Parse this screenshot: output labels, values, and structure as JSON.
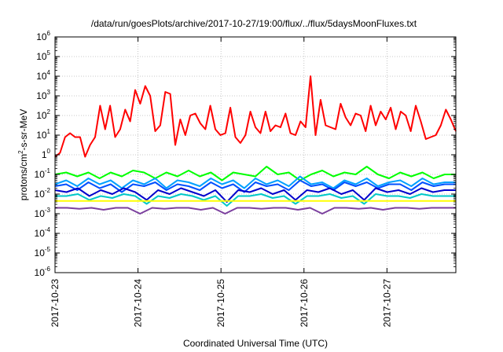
{
  "chart_data": {
    "type": "line",
    "title": "/data/run/goesPlots/archive/2017-10-27/19:00/flux/../flux/5daysMoonFluxes.txt",
    "xlabel": "Coordinated Universal Time (UTC)",
    "ylabel": {
      "pre": "protons/cm",
      "sup": "2",
      "post": "-s-sr-MeV"
    },
    "xlim": [
      0,
      4.83
    ],
    "x_ticks": [
      {
        "x": 0,
        "label": "2017-10-23"
      },
      {
        "x": 1,
        "label": "2017-10-24"
      },
      {
        "x": 2,
        "label": "2017-10-25"
      },
      {
        "x": 3,
        "label": "2017-10-26"
      },
      {
        "x": 4,
        "label": "2017-10-27"
      }
    ],
    "y_scale": "log",
    "ylim_exponent": [
      -6,
      6
    ],
    "y_ticks": [
      {
        "exp": -6,
        "base": "10",
        "sup": "-6"
      },
      {
        "exp": -5,
        "base": "10",
        "sup": "-5"
      },
      {
        "exp": -4,
        "base": "10",
        "sup": "-4"
      },
      {
        "exp": -3,
        "base": "10",
        "sup": "-3"
      },
      {
        "exp": -2,
        "base": "10",
        "sup": "-2"
      },
      {
        "exp": -1,
        "base": "10",
        "sup": "-1"
      },
      {
        "exp": 0,
        "base": "1",
        "sup": "0"
      },
      {
        "exp": 1,
        "base": "10",
        "sup": "1"
      },
      {
        "exp": 2,
        "base": "10",
        "sup": "2"
      },
      {
        "exp": 3,
        "base": "10",
        "sup": "3"
      },
      {
        "exp": 4,
        "base": "10",
        "sup": "4"
      },
      {
        "exp": 5,
        "base": "10",
        "sup": "5"
      },
      {
        "exp": 6,
        "base": "10",
        "sup": "6"
      }
    ],
    "grid": true,
    "series": [
      {
        "color": "#ff0000",
        "log10_y": [
          -0.1,
          0.1,
          0.9,
          1.1,
          0.9,
          0.9,
          -0.1,
          0.5,
          0.9,
          2.5,
          1.3,
          2.5,
          0.9,
          1.3,
          2.3,
          1.7,
          3.3,
          2.6,
          3.5,
          3.0,
          1.2,
          1.5,
          3.2,
          3.1,
          0.5,
          1.8,
          1.0,
          2.0,
          2.1,
          1.6,
          1.3,
          2.5,
          1.3,
          1.0,
          1.1,
          2.4,
          0.9,
          0.6,
          1.0,
          2.2,
          1.4,
          1.1,
          2.2,
          1.2,
          1.5,
          1.4,
          2.1,
          1.1,
          1.0,
          1.7,
          1.4,
          4.0,
          1.0,
          2.8,
          1.5,
          1.4,
          1.3,
          2.6,
          1.9,
          1.5,
          2.1,
          2.0,
          1.2,
          2.5,
          1.5,
          2.2,
          1.8,
          2.4,
          1.3,
          2.2,
          2.0,
          1.2,
          2.5,
          1.7,
          0.8,
          0.9,
          1.0,
          1.5,
          2.3,
          1.8,
          1.2
        ]
      },
      {
        "color": "#00ff00",
        "log10_y": [
          -1.0,
          -0.9,
          -1.1,
          -0.9,
          -1.2,
          -0.9,
          -1.1,
          -0.8,
          -0.9,
          -1.2,
          -0.9,
          -1.1,
          -0.8,
          -1.1,
          -0.9,
          -1.3,
          -0.9,
          -1.0,
          -1.1,
          -0.6,
          -1.0,
          -0.9,
          -1.3,
          -1.0,
          -0.8,
          -1.1,
          -0.9,
          -1.0,
          -0.6,
          -1.0,
          -1.2,
          -0.9,
          -1.1,
          -0.9,
          -1.2,
          -1.0,
          -1.0
        ]
      },
      {
        "color": "#00a0ff",
        "log10_y": [
          -1.5,
          -1.3,
          -1.6,
          -1.2,
          -1.5,
          -1.3,
          -1.7,
          -1.3,
          -1.5,
          -1.2,
          -1.7,
          -1.3,
          -1.4,
          -1.6,
          -1.2,
          -1.5,
          -1.3,
          -1.7,
          -1.2,
          -1.5,
          -1.3,
          -1.6,
          -1.1,
          -1.5,
          -1.4,
          -1.7,
          -1.3,
          -1.5,
          -1.2,
          -1.6,
          -1.4,
          -1.3,
          -1.6,
          -1.2,
          -1.5,
          -1.4,
          -1.4
        ]
      },
      {
        "color": "#0050ff",
        "log10_y": [
          -1.6,
          -1.5,
          -1.8,
          -1.4,
          -1.7,
          -1.5,
          -1.9,
          -1.5,
          -1.6,
          -1.4,
          -1.8,
          -1.5,
          -1.6,
          -1.8,
          -1.4,
          -1.7,
          -1.5,
          -1.9,
          -1.4,
          -1.6,
          -1.5,
          -1.8,
          -1.3,
          -1.6,
          -1.5,
          -1.8,
          -1.4,
          -1.6,
          -1.4,
          -1.7,
          -1.5,
          -1.5,
          -1.8,
          -1.4,
          -1.6,
          -1.5,
          -1.5
        ]
      },
      {
        "color": "#0000cc",
        "log10_y": [
          -1.8,
          -1.9,
          -1.7,
          -2.1,
          -1.8,
          -2.0,
          -1.7,
          -1.9,
          -2.3,
          -1.8,
          -2.0,
          -1.7,
          -1.9,
          -2.1,
          -1.8,
          -2.4,
          -1.8,
          -1.9,
          -1.7,
          -2.0,
          -1.8,
          -2.3,
          -1.8,
          -1.9,
          -1.7,
          -2.0,
          -1.8,
          -2.3,
          -1.7,
          -1.9,
          -1.8,
          -2.0,
          -1.7,
          -1.9,
          -1.8,
          -1.8
        ]
      },
      {
        "color": "#00c8c8",
        "log10_y": [
          -2.1,
          -2.1,
          -2.0,
          -2.3,
          -2.1,
          -2.2,
          -2.0,
          -2.1,
          -2.5,
          -2.1,
          -2.2,
          -2.0,
          -2.1,
          -2.3,
          -2.1,
          -2.6,
          -2.1,
          -2.1,
          -2.0,
          -2.2,
          -2.1,
          -2.5,
          -2.1,
          -2.1,
          -2.0,
          -2.2,
          -2.1,
          -2.5,
          -2.0,
          -2.1,
          -2.1,
          -2.2,
          -2.0,
          -2.1,
          -2.1,
          -2.1
        ]
      },
      {
        "color": "#ffff00",
        "log10_y": [
          -2.35,
          -2.35,
          -2.35,
          -2.35,
          -2.35,
          -2.35,
          -2.35,
          -2.35,
          -2.35,
          -2.35,
          -2.35,
          -2.35,
          -2.35,
          -2.35,
          -2.35,
          -2.35,
          -2.35,
          -2.35,
          -2.35,
          -2.35,
          -2.35,
          -2.35
        ]
      },
      {
        "color": "#7b3f9e",
        "log10_y": [
          -2.7,
          -2.7,
          -2.75,
          -2.7,
          -2.8,
          -2.7,
          -2.7,
          -3.0,
          -2.7,
          -2.75,
          -2.7,
          -2.7,
          -2.8,
          -2.7,
          -3.0,
          -2.7,
          -2.7,
          -2.75,
          -2.7,
          -2.7,
          -2.8,
          -2.7,
          -3.0,
          -2.7,
          -2.7,
          -2.75,
          -2.7,
          -2.8,
          -2.7,
          -2.7,
          -2.75,
          -2.7,
          -2.7,
          -2.7
        ]
      }
    ]
  }
}
